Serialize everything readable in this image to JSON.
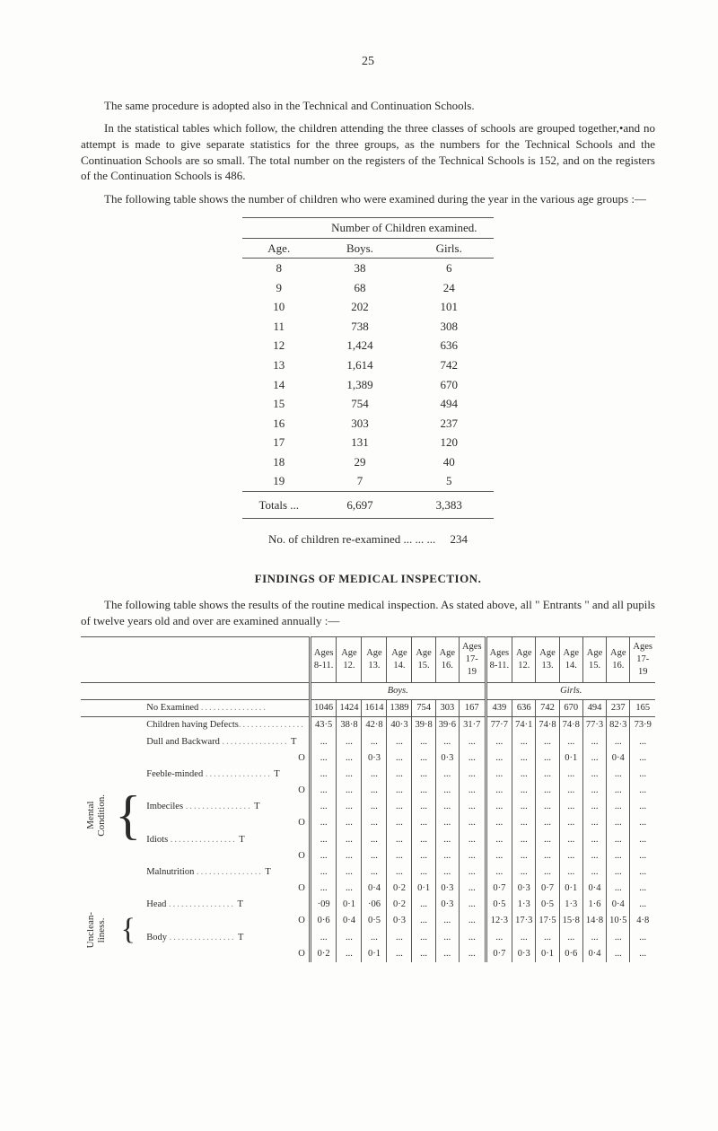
{
  "page_number": "25",
  "intro_paragraphs": [
    "The same procedure is adopted also in the Technical and Continuation Schools.",
    "In the statistical tables which follow, the children attending the three classes of schools are grouped together,•and no attempt is made to give separate statistics for the three groups, as the numbers for the Technical Schools and the Continuation Schools are so small. The total number on the registers of the Technical Schools is 152, and on the registers of the Continuation Schools is 486.",
    "The following table shows the number of children who were examined during the year in the various age groups :—"
  ],
  "age_table": {
    "header_top": "Number of Children examined.",
    "col_labels": [
      "Age.",
      "Boys.",
      "Girls."
    ],
    "rows": [
      [
        "8",
        "38",
        "6"
      ],
      [
        "9",
        "68",
        "24"
      ],
      [
        "10",
        "202",
        "101"
      ],
      [
        "11",
        "738",
        "308"
      ],
      [
        "12",
        "1,424",
        "636"
      ],
      [
        "13",
        "1,614",
        "742"
      ],
      [
        "14",
        "1,389",
        "670"
      ],
      [
        "15",
        "754",
        "494"
      ],
      [
        "16",
        "303",
        "237"
      ],
      [
        "17",
        "131",
        "120"
      ],
      [
        "18",
        "29",
        "40"
      ],
      [
        "19",
        "7",
        "5"
      ]
    ],
    "totals": [
      "Totals  ...",
      "6,697",
      "3,383"
    ]
  },
  "re_examined": {
    "label": "No. of children re-examined ...      ...     ...",
    "value": "234"
  },
  "section_title": "FINDINGS OF MEDICAL INSPECTION.",
  "findings_intro": "The following table shows the results of the routine medical inspection. As stated above, all \" Entrants \" and all pupils of twelve years old and over are examined annually :—",
  "group_headers": {
    "boys": "Boys.",
    "girls": "Girls."
  },
  "age_headers": [
    "Ages 8-11.",
    "Age 12.",
    "Age 13.",
    "Age 14.",
    "Age 15.",
    "Age 16.",
    "Ages 17-19",
    "Ages 8-11.",
    "Age 12.",
    "Age 13.",
    "Age 14.",
    "Age 15.",
    "Age 16.",
    "Ages 17-19"
  ],
  "no_examined": {
    "label": "No  Examined",
    "values": [
      "1046",
      "1424",
      "1614",
      "1389",
      "754",
      "303",
      "167",
      "439",
      "636",
      "742",
      "670",
      "494",
      "237",
      "165"
    ]
  },
  "children_defects": {
    "label": "Children having Defects",
    "values": [
      "43·5",
      "38·8",
      "42·8",
      "40·3",
      "39·8",
      "39·6",
      "31·7",
      "77·7",
      "74·1",
      "74·8",
      "74·8",
      "77·3",
      "82·3",
      "73·9"
    ]
  },
  "mental_rows": [
    {
      "label": "Dull and Backward",
      "suffix": "T",
      "values": [
        "...",
        "...",
        "...",
        "...",
        "...",
        "...",
        "...",
        "...",
        "...",
        "...",
        "...",
        "...",
        "...",
        "..."
      ]
    },
    {
      "label": "",
      "suffix": "O",
      "values": [
        "...",
        "...",
        "0·3",
        "...",
        "...",
        "0·3",
        "...",
        "...",
        "...",
        "...",
        "0·1",
        "...",
        "0·4",
        "..."
      ]
    },
    {
      "label": "Feeble-minded",
      "suffix": "T",
      "values": [
        "...",
        "...",
        "...",
        "...",
        "...",
        "...",
        "...",
        "...",
        "...",
        "...",
        "...",
        "...",
        "...",
        "..."
      ]
    },
    {
      "label": "",
      "suffix": "O",
      "values": [
        "...",
        "...",
        "...",
        "...",
        "...",
        "...",
        "...",
        "...",
        "...",
        "...",
        "...",
        "...",
        "...",
        "..."
      ]
    },
    {
      "label": "Imbeciles",
      "suffix": "T",
      "values": [
        "...",
        "...",
        "...",
        "...",
        "...",
        "...",
        "...",
        "...",
        "...",
        "...",
        "...",
        "...",
        "...",
        "..."
      ]
    },
    {
      "label": "",
      "suffix": "O",
      "values": [
        "...",
        "...",
        "...",
        "...",
        "...",
        "...",
        "...",
        "...",
        "...",
        "...",
        "...",
        "...",
        "...",
        "..."
      ]
    },
    {
      "label": "Idiots",
      "suffix": "T",
      "values": [
        "...",
        "...",
        "...",
        "...",
        "...",
        "...",
        "...",
        "...",
        "...",
        "...",
        "...",
        "...",
        "...",
        "..."
      ]
    },
    {
      "label": "",
      "suffix": "O",
      "values": [
        "...",
        "...",
        "...",
        "...",
        "...",
        "...",
        "...",
        "...",
        "...",
        "...",
        "...",
        "...",
        "...",
        "..."
      ]
    },
    {
      "label": "Malnutrition",
      "suffix": "T",
      "values": [
        "...",
        "...",
        "...",
        "...",
        "...",
        "...",
        "...",
        "...",
        "...",
        "...",
        "...",
        "...",
        "...",
        "..."
      ]
    },
    {
      "label": "",
      "suffix": "O",
      "values": [
        "...",
        "...",
        "0·4",
        "0·2",
        "0·1",
        "0·3",
        "...",
        "0·7",
        "0·3",
        "0·7",
        "0·1",
        "0·4",
        "...",
        "..."
      ]
    }
  ],
  "unclean_rows": [
    {
      "label": "Head",
      "suffix": "T",
      "values": [
        "·09",
        "0·1",
        "·06",
        "0·2",
        "...",
        "0·3",
        "...",
        "0·5",
        "1·3",
        "0·5",
        "1·3",
        "1·6",
        "0·4",
        "..."
      ]
    },
    {
      "label": "",
      "suffix": "O",
      "values": [
        "0·6",
        "0·4",
        "0·5",
        "0·3",
        "...",
        "...",
        "...",
        "12·3",
        "17·3",
        "17·5",
        "15·8",
        "14·8",
        "10·5",
        "4·8"
      ]
    },
    {
      "label": "Body",
      "suffix": "T",
      "values": [
        "...",
        "...",
        "...",
        "...",
        "...",
        "...",
        "...",
        "...",
        "...",
        "...",
        "...",
        "...",
        "...",
        "..."
      ]
    },
    {
      "label": "",
      "suffix": "O",
      "values": [
        "0·2",
        "...",
        "0·1",
        "...",
        "...",
        "...",
        "...",
        "0·7",
        "0·3",
        "0·1",
        "0·6",
        "0·4",
        "...",
        "..."
      ]
    }
  ],
  "vlabels": {
    "mental": "Mental\nCondition.",
    "unclean": "Unclean-\nliness."
  }
}
